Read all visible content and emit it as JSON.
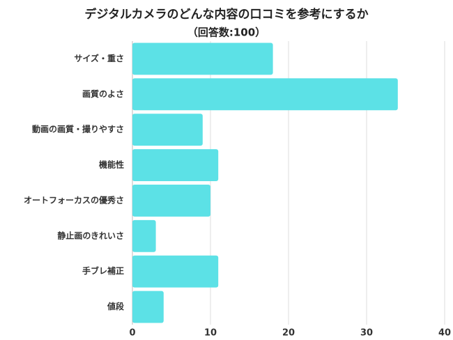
{
  "chart_data": {
    "type": "bar",
    "orientation": "horizontal",
    "title": "デジタルカメラのどんな内容の口コミを参考にするか",
    "subtitle": "（回答数:100）",
    "categories": [
      "サイズ・重さ",
      "画質のよさ",
      "動画の画質・撮りやすさ",
      "機能性",
      "オートフォーカスの優秀さ",
      "静止画のきれいさ",
      "手ブレ補正",
      "値段"
    ],
    "values": [
      18,
      34,
      9,
      11,
      10,
      3,
      11,
      4
    ],
    "color": "#5ce1e6",
    "xlim": [
      0,
      40
    ],
    "xticks": [
      0,
      10,
      20,
      30,
      40
    ],
    "grid": true
  }
}
